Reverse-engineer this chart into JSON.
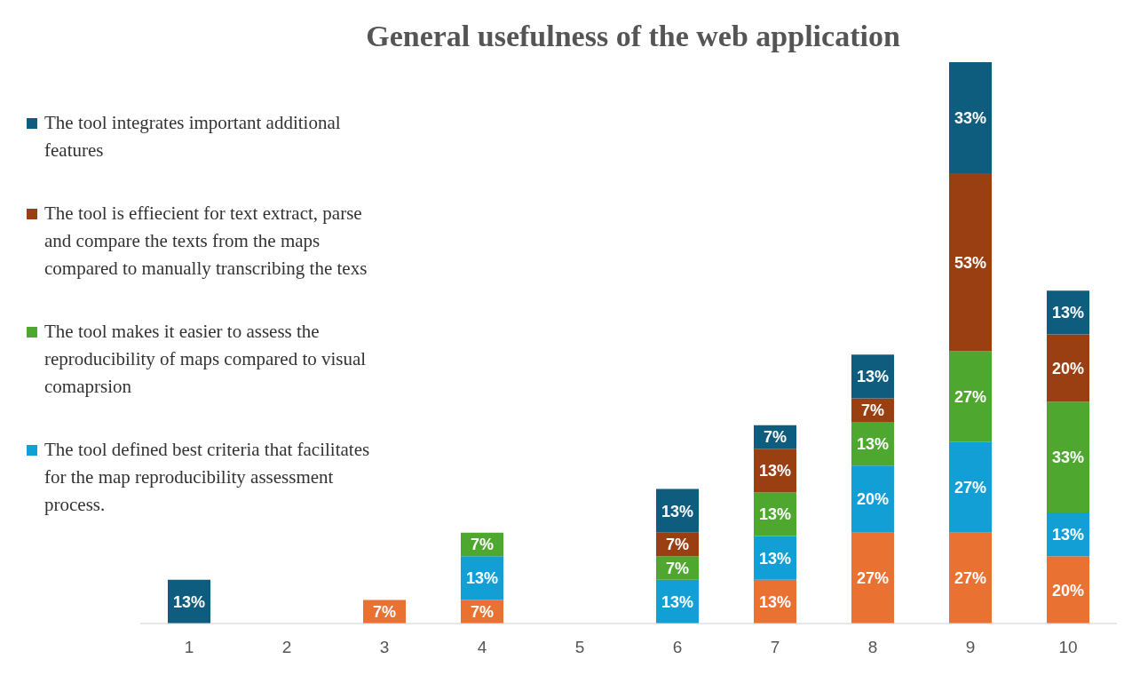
{
  "chart_data": {
    "type": "bar",
    "title": "General usefulness of the web application",
    "categories": [
      "1",
      "2",
      "3",
      "4",
      "5",
      "6",
      "7",
      "8",
      "9",
      "10"
    ],
    "stacked": true,
    "legend": "left",
    "grid": false,
    "series": [
      {
        "color": "#e97132",
        "values": [
          null,
          null,
          7,
          7,
          null,
          null,
          13,
          27,
          27,
          20
        ],
        "value_labels": [
          null,
          null,
          "7%",
          "7%",
          null,
          null,
          "13%",
          "27%",
          "27%",
          "20%"
        ]
      },
      {
        "name": "The tool defined best criteria that facilitates for the map reproducibility assessment process.",
        "color": "#129fd6",
        "values": [
          null,
          null,
          null,
          13,
          null,
          13,
          13,
          20,
          27,
          13
        ],
        "value_labels": [
          null,
          null,
          null,
          "13%",
          null,
          "13%",
          "13%",
          "20%",
          "27%",
          "13%"
        ]
      },
      {
        "name": "The tool makes it easier to assess the reproducibility of maps compared to visual comaprsion",
        "color": "#4ea72e",
        "values": [
          null,
          null,
          null,
          7,
          null,
          7,
          13,
          13,
          27,
          33
        ],
        "value_labels": [
          null,
          null,
          null,
          "7%",
          null,
          "7%",
          "13%",
          "13%",
          "27%",
          "33%"
        ]
      },
      {
        "name": "The tool is effiecient for text extract, parse and compare the texts from the maps compared to manually transcribing the texs",
        "color": "#9a3f12",
        "values": [
          null,
          null,
          null,
          null,
          null,
          7,
          13,
          7,
          53,
          20
        ],
        "value_labels": [
          null,
          null,
          null,
          null,
          null,
          "7%",
          "13%",
          "7%",
          "53%",
          "20%"
        ]
      },
      {
        "name": "The tool integrates important additional features",
        "color": "#0e5c7e",
        "values": [
          13,
          null,
          null,
          null,
          null,
          13,
          7,
          13,
          33,
          13
        ],
        "value_labels": [
          "13%",
          null,
          null,
          null,
          null,
          "13%",
          "7%",
          "13%",
          "33%",
          "13%"
        ]
      }
    ]
  }
}
